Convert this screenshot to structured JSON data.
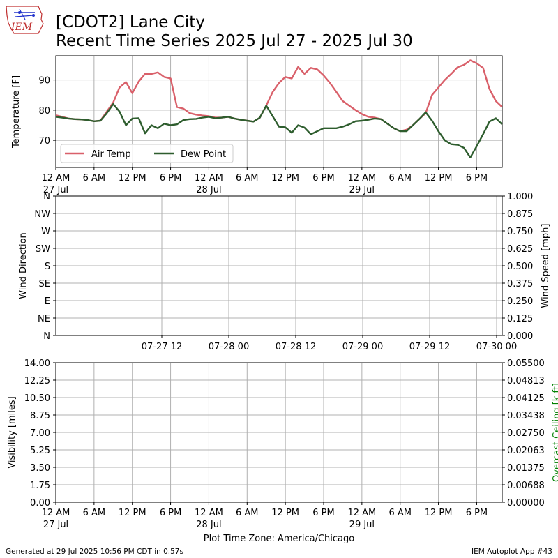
{
  "header": {
    "logo_text": "IEM",
    "title_line1": "[CDOT2] Lane City",
    "title_line2": "Recent Time Series 2025 Jul 27 - 2025 Jul 30"
  },
  "footer": {
    "generated": "Generated at 29 Jul 2025 10:56 PM CDT in 0.57s",
    "app": "IEM Autoplot App #43",
    "timezone_label": "Plot Time Zone: America/Chicago"
  },
  "colors": {
    "air_temp": "#d9606a",
    "dew_point": "#2e5d2e",
    "ceiling_label": "#008000"
  },
  "chart_data": [
    {
      "type": "line",
      "ylabel": "Temperature [F]",
      "ylim": [
        61,
        98
      ],
      "yticks": [
        "70",
        "80",
        "90"
      ],
      "ytick_values": [
        70,
        80,
        90
      ],
      "xlim_hours": [
        0,
        70
      ],
      "xticks": [
        {
          "hour": 0,
          "label": "12 AM",
          "sub": "27 Jul"
        },
        {
          "hour": 6,
          "label": "6 AM",
          "sub": ""
        },
        {
          "hour": 12,
          "label": "12 PM",
          "sub": ""
        },
        {
          "hour": 18,
          "label": "6 PM",
          "sub": ""
        },
        {
          "hour": 24,
          "label": "12 AM",
          "sub": "28 Jul"
        },
        {
          "hour": 30,
          "label": "6 AM",
          "sub": ""
        },
        {
          "hour": 36,
          "label": "12 PM",
          "sub": ""
        },
        {
          "hour": 42,
          "label": "6 PM",
          "sub": ""
        },
        {
          "hour": 48,
          "label": "12 AM",
          "sub": "29 Jul"
        },
        {
          "hour": 54,
          "label": "6 AM",
          "sub": ""
        },
        {
          "hour": 60,
          "label": "12 PM",
          "sub": ""
        },
        {
          "hour": 66,
          "label": "6 PM",
          "sub": ""
        }
      ],
      "grid": true,
      "legend_position": "lower-left",
      "series": [
        {
          "name": "Air Temp",
          "x": [
            0,
            1,
            2,
            3,
            4,
            5,
            6,
            7,
            8,
            9,
            10,
            11,
            12,
            13,
            14,
            15,
            16,
            17,
            18,
            19,
            20,
            21,
            22,
            23,
            24,
            25,
            26,
            27,
            28,
            29,
            30,
            31,
            32,
            33,
            34,
            35,
            36,
            37,
            38,
            39,
            40,
            41,
            42,
            43,
            44,
            45,
            46,
            47,
            48,
            49,
            50,
            51,
            52,
            53,
            54,
            55,
            56,
            57,
            58,
            59,
            60,
            61,
            62,
            63,
            64,
            65,
            66,
            67,
            68,
            69,
            70
          ],
          "values": [
            78.3,
            77.8,
            77.2,
            77.0,
            76.9,
            76.7,
            76.3,
            76.5,
            79.5,
            82.5,
            87.5,
            89.3,
            85.6,
            89.5,
            92.0,
            92.0,
            92.5,
            91.0,
            90.5,
            81.0,
            80.5,
            79.0,
            78.5,
            78.2,
            78.0,
            77.5,
            77.5,
            77.8,
            77.2,
            76.8,
            76.5,
            76.2,
            77.5,
            81.5,
            86.0,
            89.0,
            91.0,
            90.5,
            94.3,
            92.0,
            94.0,
            93.5,
            91.5,
            89.0,
            86.0,
            83.0,
            81.5,
            80.0,
            78.7,
            77.8,
            77.5,
            77.0,
            75.5,
            74.0,
            73.0,
            73.5,
            75.0,
            77.0,
            79.0,
            85.0,
            87.5,
            90.0,
            92.0,
            94.2,
            95.0,
            96.5,
            95.5,
            94.0,
            87.0,
            83.0,
            81.0
          ]
        },
        {
          "name": "Dew Point",
          "x": [
            0,
            1,
            2,
            3,
            4,
            5,
            6,
            7,
            8,
            9,
            10,
            11,
            12,
            13,
            14,
            15,
            16,
            17,
            18,
            19,
            20,
            21,
            22,
            23,
            24,
            25,
            26,
            27,
            28,
            29,
            30,
            31,
            32,
            33,
            34,
            35,
            36,
            37,
            38,
            39,
            40,
            41,
            42,
            43,
            44,
            45,
            46,
            47,
            48,
            49,
            50,
            51,
            52,
            53,
            54,
            55,
            56,
            57,
            58,
            59,
            60,
            61,
            62,
            63,
            64,
            65,
            66,
            67,
            68,
            69,
            70
          ],
          "values": [
            77.8,
            77.5,
            77.2,
            77.0,
            76.9,
            76.7,
            76.3,
            76.5,
            79.0,
            82.0,
            79.5,
            75.0,
            77.2,
            77.3,
            72.3,
            75.0,
            74.0,
            75.5,
            75.0,
            75.3,
            76.7,
            77.0,
            77.1,
            77.5,
            77.8,
            77.3,
            77.5,
            77.8,
            77.2,
            76.8,
            76.5,
            76.2,
            77.5,
            81.5,
            78.0,
            74.5,
            74.3,
            72.5,
            75.0,
            74.2,
            72.0,
            73.0,
            74.0,
            74.0,
            74.0,
            74.5,
            75.3,
            76.3,
            76.5,
            76.8,
            77.2,
            77.0,
            75.5,
            74.0,
            73.0,
            73.0,
            75.0,
            77.0,
            79.3,
            76.5,
            73.0,
            70.0,
            68.7,
            68.5,
            67.5,
            64.3,
            68.0,
            72.0,
            76.2,
            77.3,
            75.3
          ]
        }
      ]
    },
    {
      "type": "line",
      "ylabel": "Wind Direction",
      "y2label": "Wind Speed [mph]",
      "yticks": [
        "N",
        "NE",
        "E",
        "SE",
        "S",
        "SW",
        "W",
        "NW",
        "N"
      ],
      "y2ticks": [
        "0.000",
        "0.125",
        "0.250",
        "0.375",
        "0.500",
        "0.625",
        "0.750",
        "0.875",
        "1.000"
      ],
      "y2lim": [
        0,
        1
      ],
      "xticks": [
        {
          "hour": 12,
          "label": "07-27 12"
        },
        {
          "hour": 24,
          "label": "07-28 00"
        },
        {
          "hour": 36,
          "label": "07-28 12"
        },
        {
          "hour": 48,
          "label": "07-29 00"
        },
        {
          "hour": 60,
          "label": "07-29 12"
        },
        {
          "hour": 72,
          "label": "07-30 00"
        }
      ],
      "xlim_hours": [
        -7,
        73
      ],
      "grid": true,
      "series": []
    },
    {
      "type": "line",
      "ylabel": "Visibility [miles]",
      "y2label": "Overcast Ceiling [k ft]",
      "ylim": [
        0,
        14
      ],
      "yticks": [
        "0.00",
        "1.75",
        "3.50",
        "5.25",
        "7.00",
        "8.75",
        "10.50",
        "12.25",
        "14.00"
      ],
      "y2lim": [
        0,
        0.055
      ],
      "y2ticks": [
        "0.00000",
        "0.00688",
        "0.01375",
        "0.02063",
        "0.02750",
        "0.03438",
        "0.04125",
        "0.04813",
        "0.05500"
      ],
      "xlim_hours": [
        0,
        70
      ],
      "xticks": [
        {
          "hour": 0,
          "label": "12 AM",
          "sub": "27 Jul"
        },
        {
          "hour": 6,
          "label": "6 AM",
          "sub": ""
        },
        {
          "hour": 12,
          "label": "12 PM",
          "sub": ""
        },
        {
          "hour": 18,
          "label": "6 PM",
          "sub": ""
        },
        {
          "hour": 24,
          "label": "12 AM",
          "sub": "28 Jul"
        },
        {
          "hour": 30,
          "label": "6 AM",
          "sub": ""
        },
        {
          "hour": 36,
          "label": "12 PM",
          "sub": ""
        },
        {
          "hour": 42,
          "label": "6 PM",
          "sub": ""
        },
        {
          "hour": 48,
          "label": "12 AM",
          "sub": "29 Jul"
        },
        {
          "hour": 54,
          "label": "6 AM",
          "sub": ""
        },
        {
          "hour": 60,
          "label": "12 PM",
          "sub": ""
        },
        {
          "hour": 66,
          "label": "6 PM",
          "sub": ""
        }
      ],
      "grid": true,
      "series": []
    }
  ]
}
